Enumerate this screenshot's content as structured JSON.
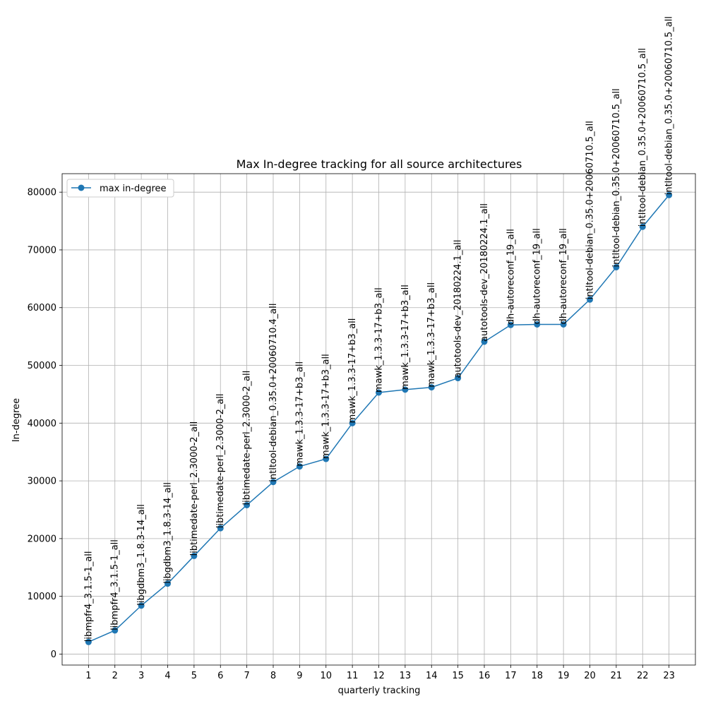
{
  "chart_data": {
    "type": "line",
    "title": "Max In-degree tracking for all source architectures",
    "xlabel": "quarterly tracking",
    "ylabel": "In-degree",
    "x": [
      1,
      2,
      3,
      4,
      5,
      6,
      7,
      8,
      9,
      10,
      11,
      12,
      13,
      14,
      15,
      16,
      17,
      18,
      19,
      20,
      21,
      22,
      23
    ],
    "ylim": [
      -1900,
      83200
    ],
    "xlim": [
      0,
      24
    ],
    "yticks": [
      0,
      10000,
      20000,
      30000,
      40000,
      50000,
      60000,
      70000,
      80000
    ],
    "grid": true,
    "legend_position": "top-left",
    "color": "#1f77b4",
    "series": [
      {
        "name": "max in-degree",
        "values": [
          2100,
          4100,
          8400,
          12200,
          17000,
          21800,
          25800,
          29800,
          32500,
          33800,
          40000,
          45300,
          45800,
          46200,
          47800,
          54100,
          57000,
          57100,
          57100,
          61400,
          67000,
          74000,
          79500
        ]
      }
    ],
    "annotations": [
      "libmpfr4_3.1.5-1_all",
      "libmpfr4_3.1.5-1_all",
      "libgdbm3_1.8.3-14_all",
      "libgdbm3_1.8.3-14_all",
      "libtimedate-perl_2.3000-2_all",
      "libtimedate-perl_2.3000-2_all",
      "libtimedate-perl_2.3000-2_all",
      "intltool-debian_0.35.0+20060710.4_all",
      "mawk_1.3.3-17+b3_all",
      "mawk_1.3.3-17+b3_all",
      "mawk_1.3.3-17+b3_all",
      "mawk_1.3.3-17+b3_all",
      "mawk_1.3.3-17+b3_all",
      "mawk_1.3.3-17+b3_all",
      "autotools-dev_20180224.1_all",
      "autotools-dev_20180224.1_all",
      "dh-autoreconf_19_all",
      "dh-autoreconf_19_all",
      "dh-autoreconf_19_all",
      "intltool-debian_0.35.0+20060710.5_all",
      "intltool-debian_0.35.0+20060710.5_all",
      "intltool-debian_0.35.0+20060710.5_all",
      "intltool-debian_0.35.0+20060710.5_all"
    ]
  }
}
